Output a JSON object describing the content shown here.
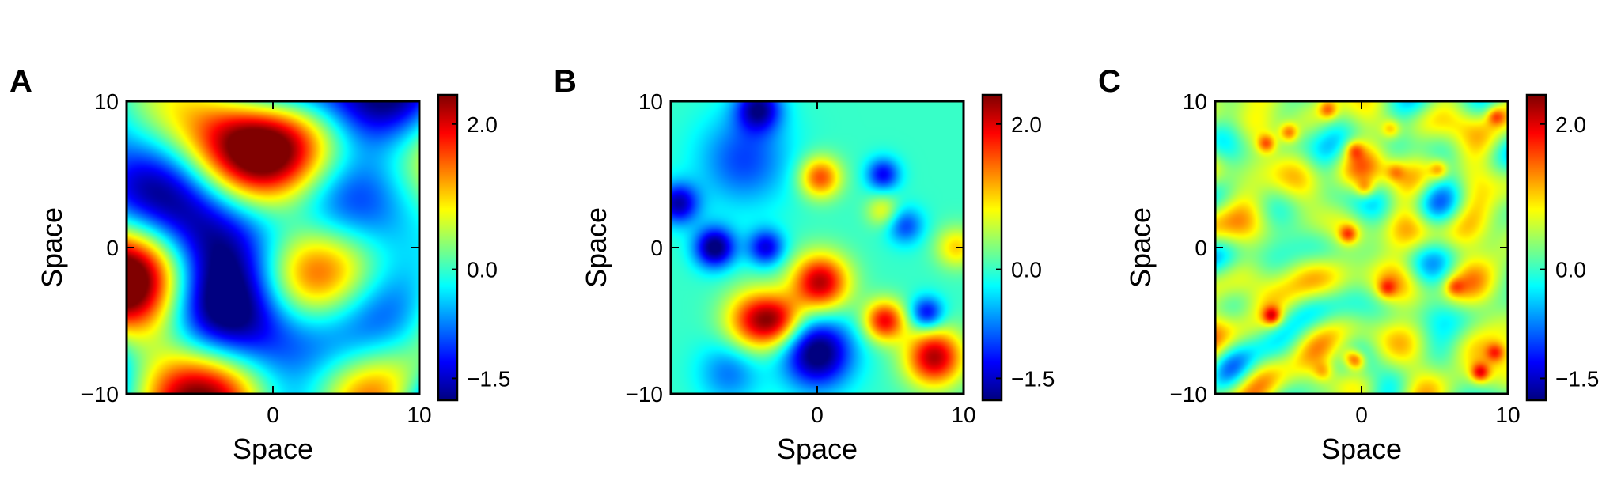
{
  "chart_data": [
    {
      "type": "heatmap",
      "panel_label": "A",
      "xlabel": "Space",
      "ylabel": "Space",
      "xlim": [
        -10,
        10
      ],
      "ylim": [
        -10,
        10
      ],
      "x_ticks": [
        0,
        10
      ],
      "x_tick_labels": [
        "0",
        "10"
      ],
      "y_ticks": [
        -10,
        0,
        10
      ],
      "y_tick_labels": [
        "−10",
        "0",
        "10"
      ],
      "colorbar": {
        "range": [
          -1.8,
          2.4
        ],
        "ticks": [
          -1.5,
          0.0,
          2.0
        ],
        "tick_labels": [
          "−1.5",
          "0.0",
          "2.0"
        ],
        "colormap": "jet"
      },
      "field_description": "rough Gaussian random field, short correlation length, values roughly -1.8 to 2.4",
      "field_seed": 11,
      "field_modes": 34,
      "field_freq": 0.55,
      "field_scale": 1.0
    },
    {
      "type": "heatmap",
      "panel_label": "B",
      "xlabel": "Space",
      "ylabel": "Space",
      "xlim": [
        -10,
        10
      ],
      "ylim": [
        -10,
        10
      ],
      "x_ticks": [
        0,
        10
      ],
      "x_tick_labels": [
        "0",
        "10"
      ],
      "y_ticks": [
        -10,
        0,
        10
      ],
      "y_tick_labels": [
        "−10",
        "0",
        "10"
      ],
      "colorbar": {
        "range": [
          -1.8,
          2.4
        ],
        "ticks": [
          -1.5,
          0.0,
          2.0
        ],
        "tick_labels": [
          "−1.5",
          "0.0",
          "2.0"
        ],
        "colormap": "jet"
      },
      "field_description": "smooth field with isolated blobs; red peaks near (0,-2.5), (-3,-5), (7.5,-7.5), (0,5); blue lows near (0,-7), (-7,0)",
      "field_bumps": [
        {
          "x": 0.2,
          "y": -2.4,
          "a": 2.2,
          "s": 1.4
        },
        {
          "x": -4.2,
          "y": -5.0,
          "a": 1.8,
          "s": 1.5
        },
        {
          "x": -2.5,
          "y": -5.0,
          "a": 1.2,
          "s": 1.2
        },
        {
          "x": 8.0,
          "y": -7.5,
          "a": 2.2,
          "s": 1.4
        },
        {
          "x": 4.6,
          "y": -5.0,
          "a": 1.9,
          "s": 1.0
        },
        {
          "x": 0.2,
          "y": 4.8,
          "a": 1.6,
          "s": 1.0
        },
        {
          "x": 0.0,
          "y": -7.2,
          "a": -2.0,
          "s": 1.7
        },
        {
          "x": -7.0,
          "y": 0.0,
          "a": -1.9,
          "s": 1.0
        },
        {
          "x": -3.5,
          "y": 0.0,
          "a": -1.4,
          "s": 0.9
        },
        {
          "x": -5.0,
          "y": 6.0,
          "a": -1.0,
          "s": 2.2
        },
        {
          "x": -4.0,
          "y": 9.5,
          "a": -1.6,
          "s": 1.1
        },
        {
          "x": -9.5,
          "y": 3.0,
          "a": -1.6,
          "s": 1.0
        },
        {
          "x": 4.5,
          "y": 5.0,
          "a": -1.3,
          "s": 0.8
        },
        {
          "x": 6.0,
          "y": 1.5,
          "a": -1.0,
          "s": 0.9
        },
        {
          "x": 4.5,
          "y": 2.5,
          "a": 0.8,
          "s": 0.8
        },
        {
          "x": 7.5,
          "y": -4.5,
          "a": -1.4,
          "s": 0.8
        },
        {
          "x": 9.5,
          "y": 0.0,
          "a": 1.0,
          "s": 1.0
        },
        {
          "x": -6.0,
          "y": -8.5,
          "a": -0.8,
          "s": 1.5
        }
      ]
    },
    {
      "type": "heatmap",
      "panel_label": "C",
      "xlabel": "Space",
      "ylabel": "Space",
      "xlim": [
        -10,
        10
      ],
      "ylim": [
        -10,
        10
      ],
      "x_ticks": [
        0,
        10
      ],
      "x_tick_labels": [
        "0",
        "10"
      ],
      "y_ticks": [
        -10,
        0,
        10
      ],
      "y_tick_labels": [
        "−10",
        "0",
        "10"
      ],
      "colorbar": {
        "range": [
          -1.8,
          2.4
        ],
        "ticks": [
          -1.5,
          0.0,
          2.0
        ],
        "tick_labels": [
          "−1.5",
          "0.0",
          "2.0"
        ],
        "colormap": "jet"
      },
      "field_description": "low-amplitude high-frequency field, mostly green-yellow with small orange/red spots, values roughly 0 to 1.9",
      "field_seed": 29,
      "field_modes": 40,
      "field_freq": 1.3,
      "field_scale": 0.35,
      "field_offset": 0.45,
      "field_spots_seed": 7,
      "field_spots": 18
    }
  ]
}
